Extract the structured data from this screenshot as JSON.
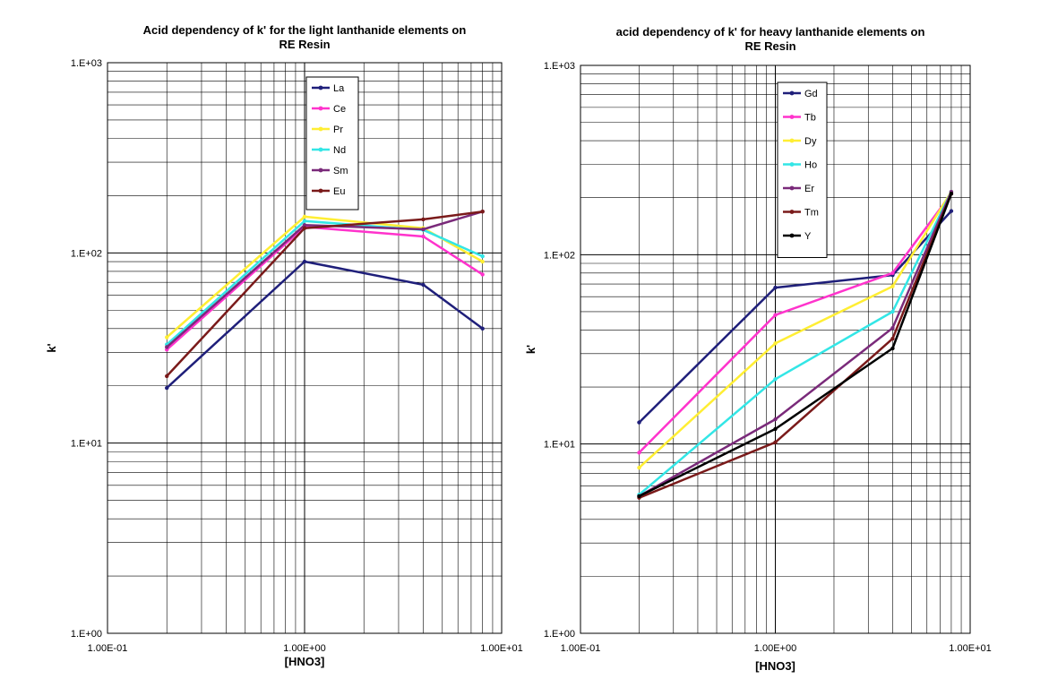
{
  "chart_data": [
    {
      "type": "line",
      "scale": "log-log",
      "title_lines": [
        "Acid dependency of k' for the light lanthanide elements on",
        "RE Resin"
      ],
      "xlabel": "[HNO3]",
      "ylabel": "k'",
      "xlim": [
        0.1,
        10
      ],
      "ylim": [
        1,
        1000
      ],
      "x_tick_labels": [
        "1.00E-01",
        "1.00E+00",
        "1.00E+01"
      ],
      "y_tick_labels": [
        "1.E+00",
        "1.E+01",
        "1.E+02",
        "1.E+03"
      ],
      "legend_position": "top-center",
      "x": [
        0.2,
        1,
        4,
        8
      ],
      "series": [
        {
          "name": "La",
          "color": "#1f1f7a",
          "values": [
            19.5,
            90,
            68,
            40
          ]
        },
        {
          "name": "Ce",
          "color": "#ff33cc",
          "values": [
            31,
            137,
            122,
            77
          ]
        },
        {
          "name": "Pr",
          "color": "#ffee33",
          "values": [
            36,
            155,
            135,
            90
          ]
        },
        {
          "name": "Nd",
          "color": "#33e6e6",
          "values": [
            33,
            147,
            132,
            96
          ]
        },
        {
          "name": "Sm",
          "color": "#7a2a7a",
          "values": [
            32,
            140,
            133,
            165
          ]
        },
        {
          "name": "Eu",
          "color": "#7a1a1a",
          "values": [
            22.5,
            135,
            150,
            165
          ]
        }
      ]
    },
    {
      "type": "line",
      "scale": "log-log",
      "title_lines": [
        "acid dependency of k' for heavy lanthanide elements on",
        "RE Resin"
      ],
      "xlabel": "[HNO3]",
      "ylabel": "k'",
      "xlim": [
        0.1,
        10
      ],
      "ylim": [
        1,
        1000
      ],
      "x_tick_labels": [
        "1.00E-01",
        "1.00E+00",
        "1.00E+01"
      ],
      "y_tick_labels": [
        "1.E+00",
        "1.E+01",
        "1.E+02",
        "1.E+03"
      ],
      "legend_position": "top-center",
      "x": [
        0.2,
        1,
        4,
        8
      ],
      "series": [
        {
          "name": "Gd",
          "color": "#1f1f7a",
          "values": [
            13,
            67,
            78,
            170
          ]
        },
        {
          "name": "Tb",
          "color": "#ff33cc",
          "values": [
            9,
            48,
            80,
            210
          ]
        },
        {
          "name": "Dy",
          "color": "#ffee33",
          "values": [
            7.5,
            34,
            68,
            215
          ]
        },
        {
          "name": "Ho",
          "color": "#33e6e6",
          "values": [
            5.4,
            22,
            50,
            215
          ]
        },
        {
          "name": "Er",
          "color": "#7a2a7a",
          "values": [
            5.3,
            13.5,
            41,
            215
          ]
        },
        {
          "name": "Tm",
          "color": "#7a1a1a",
          "values": [
            5.2,
            10.2,
            36,
            210
          ]
        },
        {
          "name": "Y",
          "color": "#000000",
          "values": [
            5.3,
            12,
            32,
            210
          ]
        }
      ]
    }
  ]
}
